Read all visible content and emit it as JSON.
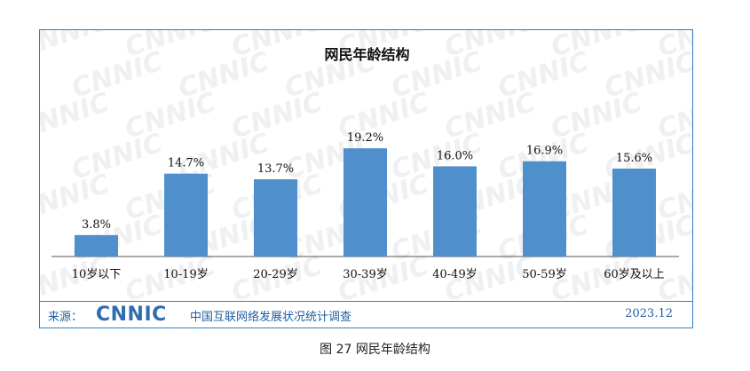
{
  "chart_data": {
    "type": "bar",
    "title": "网民年龄结构",
    "categories": [
      "10岁以下",
      "10-19岁",
      "20-29岁",
      "30-39岁",
      "40-49岁",
      "50-59岁",
      "60岁及以上"
    ],
    "values": [
      3.8,
      14.7,
      13.7,
      19.2,
      16.0,
      16.9,
      15.6
    ],
    "value_labels": [
      "3.8%",
      "14.7%",
      "13.7%",
      "19.2%",
      "16.0%",
      "16.9%",
      "15.6%"
    ],
    "ylim": [
      0,
      20.5
    ],
    "grid": false,
    "bar_color": "#4f90cc"
  },
  "watermark": "CNNIC",
  "source": {
    "label": "来源：",
    "logo": "CNNIC",
    "org": "中国互联网络发展状况统计调查",
    "date": "2023.12"
  },
  "caption": "图 27 网民年龄结构",
  "colors": {
    "frame": "#2e7fc1",
    "text_blue": "#1f5fa0"
  }
}
